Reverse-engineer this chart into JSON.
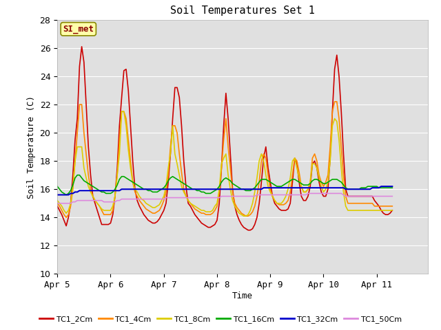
{
  "title": "Soil Temperatures Set 1",
  "xlabel": "Time",
  "ylabel": "Soil Temperature (C)",
  "ylim": [
    10,
    28
  ],
  "yticks": [
    10,
    12,
    14,
    16,
    18,
    20,
    22,
    24,
    26,
    28
  ],
  "annotation_text": "SI_met",
  "plot_bg_color": "#e0e0e0",
  "fig_bg_color": "#ffffff",
  "series": {
    "TC1_2Cm": {
      "color": "#cc0000",
      "lw": 1.2
    },
    "TC1_4Cm": {
      "color": "#ff8800",
      "lw": 1.2
    },
    "TC1_8Cm": {
      "color": "#ddcc00",
      "lw": 1.2
    },
    "TC1_16Cm": {
      "color": "#00aa00",
      "lw": 1.2
    },
    "TC1_32Cm": {
      "color": "#0000cc",
      "lw": 1.5
    },
    "TC1_50Cm": {
      "color": "#dd88dd",
      "lw": 1.2
    }
  },
  "x_day_labels": [
    "Apr 5",
    "Apr 6",
    "Apr 7",
    "Apr 8",
    "Apr 9",
    "Apr 10",
    "Apr 11"
  ],
  "x_day_positions": [
    0,
    24,
    48,
    72,
    96,
    120,
    144
  ],
  "TC1_2Cm": [
    14.8,
    14.5,
    14.2,
    13.8,
    13.4,
    14.0,
    15.0,
    17.0,
    19.5,
    21.0,
    24.7,
    26.1,
    25.0,
    22.0,
    19.0,
    17.0,
    15.5,
    15.0,
    14.5,
    14.0,
    13.5,
    13.5,
    13.5,
    13.5,
    13.6,
    14.2,
    15.5,
    17.5,
    20.5,
    22.5,
    24.4,
    24.5,
    23.0,
    20.5,
    18.0,
    16.0,
    15.2,
    14.8,
    14.5,
    14.2,
    14.0,
    13.8,
    13.7,
    13.6,
    13.6,
    13.7,
    13.9,
    14.2,
    14.5,
    15.0,
    16.5,
    18.5,
    21.0,
    23.2,
    23.2,
    22.5,
    20.5,
    18.0,
    16.2,
    15.0,
    14.8,
    14.5,
    14.2,
    14.0,
    13.8,
    13.6,
    13.5,
    13.4,
    13.3,
    13.3,
    13.4,
    13.5,
    13.8,
    15.0,
    17.5,
    20.5,
    22.8,
    21.0,
    18.5,
    16.0,
    14.8,
    14.2,
    13.8,
    13.5,
    13.3,
    13.2,
    13.1,
    13.1,
    13.2,
    13.5,
    14.0,
    15.0,
    16.5,
    18.2,
    19.0,
    17.5,
    16.5,
    15.5,
    15.0,
    14.8,
    14.6,
    14.5,
    14.5,
    14.5,
    14.6,
    15.0,
    16.5,
    18.2,
    17.8,
    16.5,
    15.5,
    15.2,
    15.2,
    15.5,
    16.2,
    17.8,
    18.0,
    17.5,
    16.5,
    15.8,
    15.5,
    15.5,
    16.0,
    18.2,
    21.5,
    24.5,
    25.5,
    24.0,
    21.5,
    18.5,
    16.0,
    15.5,
    15.5,
    15.5,
    15.5,
    15.5,
    15.5,
    15.5,
    15.5,
    15.5,
    15.5,
    15.5,
    15.5,
    15.2,
    15.0,
    14.8,
    14.5,
    14.3,
    14.2,
    14.2,
    14.3,
    14.5
  ],
  "TC1_4Cm": [
    15.0,
    14.8,
    14.5,
    14.2,
    14.0,
    14.2,
    14.8,
    16.0,
    18.0,
    20.0,
    22.0,
    22.0,
    20.0,
    18.5,
    17.0,
    16.0,
    15.5,
    15.2,
    15.0,
    14.8,
    14.5,
    14.2,
    14.2,
    14.2,
    14.2,
    14.5,
    15.5,
    17.0,
    19.5,
    21.5,
    21.5,
    21.0,
    19.5,
    18.0,
    16.5,
    15.8,
    15.5,
    15.2,
    15.0,
    14.8,
    14.6,
    14.5,
    14.4,
    14.3,
    14.3,
    14.4,
    14.5,
    14.8,
    15.2,
    15.8,
    17.0,
    19.0,
    20.5,
    20.5,
    20.0,
    18.5,
    17.2,
    16.0,
    15.5,
    15.2,
    15.0,
    14.8,
    14.6,
    14.5,
    14.4,
    14.3,
    14.3,
    14.2,
    14.2,
    14.2,
    14.3,
    14.5,
    14.8,
    15.8,
    17.5,
    19.5,
    21.0,
    19.0,
    17.5,
    15.8,
    15.0,
    14.7,
    14.5,
    14.3,
    14.2,
    14.1,
    14.1,
    14.2,
    14.4,
    14.8,
    15.5,
    16.5,
    18.0,
    18.5,
    18.2,
    17.0,
    16.0,
    15.5,
    15.2,
    15.0,
    14.9,
    14.9,
    14.9,
    15.0,
    15.2,
    15.8,
    17.0,
    18.2,
    18.0,
    17.2,
    16.2,
    15.8,
    15.8,
    16.0,
    16.5,
    18.2,
    18.5,
    18.0,
    17.0,
    16.5,
    16.2,
    16.5,
    17.0,
    19.0,
    21.5,
    22.2,
    22.2,
    21.0,
    19.0,
    17.0,
    15.5,
    15.0,
    15.0,
    15.0,
    15.0,
    15.0,
    15.0,
    15.0,
    15.0,
    15.0,
    15.0,
    15.0,
    15.0,
    14.8,
    14.8,
    14.8,
    14.8,
    14.8,
    14.8,
    14.8,
    14.8,
    14.8
  ],
  "TC1_8Cm": [
    15.2,
    15.0,
    14.8,
    14.5,
    14.3,
    14.5,
    15.0,
    16.2,
    18.0,
    19.0,
    19.0,
    19.0,
    17.5,
    16.8,
    16.2,
    15.8,
    15.5,
    15.2,
    15.0,
    14.8,
    14.6,
    14.5,
    14.5,
    14.5,
    14.5,
    14.8,
    15.5,
    17.0,
    18.5,
    21.5,
    21.5,
    20.5,
    18.8,
    17.5,
    16.5,
    16.0,
    15.8,
    15.5,
    15.3,
    15.2,
    15.0,
    14.9,
    14.8,
    14.7,
    14.7,
    14.8,
    14.9,
    15.2,
    15.5,
    16.2,
    17.5,
    18.5,
    20.5,
    18.5,
    17.8,
    17.0,
    16.2,
    15.8,
    15.5,
    15.2,
    15.0,
    14.9,
    14.8,
    14.7,
    14.6,
    14.5,
    14.5,
    14.4,
    14.4,
    14.4,
    14.5,
    14.8,
    15.0,
    16.0,
    17.8,
    18.2,
    18.5,
    17.0,
    16.0,
    15.2,
    14.8,
    14.5,
    14.3,
    14.2,
    14.1,
    14.1,
    14.2,
    14.5,
    15.0,
    15.8,
    16.8,
    18.0,
    18.5,
    18.0,
    17.0,
    16.2,
    15.8,
    15.5,
    15.2,
    15.0,
    15.0,
    15.0,
    15.2,
    15.5,
    16.0,
    16.8,
    18.0,
    18.2,
    17.5,
    16.8,
    16.2,
    15.8,
    15.8,
    16.0,
    16.5,
    17.8,
    17.8,
    17.5,
    16.8,
    16.2,
    15.8,
    16.0,
    16.5,
    18.0,
    20.5,
    21.0,
    20.8,
    19.5,
    17.5,
    15.8,
    14.8,
    14.5,
    14.5,
    14.5,
    14.5,
    14.5,
    14.5,
    14.5,
    14.5,
    14.5,
    14.5,
    14.5,
    14.5,
    14.5,
    14.5,
    14.5,
    14.5,
    14.5,
    14.5,
    14.5,
    14.5,
    14.5
  ],
  "TC1_16Cm": [
    16.2,
    16.0,
    15.8,
    15.7,
    15.6,
    15.7,
    15.9,
    16.3,
    16.8,
    17.0,
    17.0,
    16.8,
    16.6,
    16.5,
    16.4,
    16.3,
    16.2,
    16.1,
    16.0,
    15.9,
    15.8,
    15.8,
    15.7,
    15.7,
    15.7,
    15.8,
    16.0,
    16.3,
    16.7,
    16.9,
    16.9,
    16.8,
    16.7,
    16.6,
    16.5,
    16.4,
    16.3,
    16.2,
    16.1,
    16.0,
    16.0,
    15.9,
    15.9,
    15.8,
    15.8,
    15.8,
    15.9,
    16.0,
    16.1,
    16.3,
    16.6,
    16.8,
    16.9,
    16.8,
    16.7,
    16.6,
    16.5,
    16.4,
    16.3,
    16.2,
    16.1,
    16.0,
    16.0,
    15.9,
    15.9,
    15.8,
    15.8,
    15.7,
    15.7,
    15.7,
    15.8,
    15.9,
    16.0,
    16.2,
    16.5,
    16.7,
    16.8,
    16.7,
    16.6,
    16.4,
    16.3,
    16.2,
    16.1,
    16.0,
    16.0,
    15.9,
    15.9,
    15.9,
    16.0,
    16.1,
    16.3,
    16.5,
    16.7,
    16.7,
    16.7,
    16.6,
    16.5,
    16.4,
    16.3,
    16.2,
    16.2,
    16.2,
    16.3,
    16.4,
    16.5,
    16.6,
    16.7,
    16.7,
    16.6,
    16.5,
    16.4,
    16.3,
    16.3,
    16.3,
    16.4,
    16.6,
    16.7,
    16.7,
    16.6,
    16.5,
    16.4,
    16.4,
    16.5,
    16.6,
    16.7,
    16.7,
    16.7,
    16.6,
    16.5,
    16.3,
    16.1,
    16.0,
    16.0,
    16.0,
    16.0,
    16.0,
    16.0,
    16.1,
    16.1,
    16.1,
    16.2,
    16.2,
    16.2,
    16.2,
    16.2,
    16.1,
    16.1,
    16.1,
    16.1,
    16.1,
    16.1,
    16.1
  ],
  "TC1_32Cm": [
    15.6,
    15.6,
    15.6,
    15.6,
    15.6,
    15.6,
    15.7,
    15.7,
    15.8,
    15.8,
    15.9,
    15.9,
    15.9,
    15.9,
    15.9,
    15.9,
    15.9,
    15.9,
    15.9,
    15.9,
    15.9,
    15.9,
    15.9,
    15.9,
    15.9,
    15.9,
    15.9,
    15.9,
    15.9,
    16.0,
    16.0,
    16.0,
    16.0,
    16.0,
    16.0,
    16.0,
    16.0,
    16.0,
    16.0,
    16.0,
    16.0,
    16.0,
    16.0,
    16.0,
    16.0,
    16.0,
    16.0,
    16.0,
    16.0,
    16.0,
    16.0,
    16.0,
    16.0,
    16.0,
    16.0,
    16.0,
    16.0,
    16.0,
    16.0,
    16.0,
    16.0,
    16.0,
    16.0,
    16.0,
    16.0,
    16.0,
    16.0,
    16.0,
    16.0,
    16.0,
    16.0,
    16.0,
    16.0,
    16.0,
    16.0,
    16.0,
    16.0,
    16.0,
    16.0,
    16.0,
    16.0,
    16.0,
    16.0,
    16.0,
    16.0,
    16.0,
    16.0,
    16.0,
    16.0,
    16.0,
    16.0,
    16.0,
    16.0,
    16.1,
    16.1,
    16.1,
    16.1,
    16.1,
    16.1,
    16.1,
    16.1,
    16.1,
    16.1,
    16.1,
    16.1,
    16.1,
    16.1,
    16.1,
    16.1,
    16.1,
    16.1,
    16.1,
    16.1,
    16.1,
    16.1,
    16.1,
    16.1,
    16.1,
    16.1,
    16.1,
    16.1,
    16.1,
    16.1,
    16.1,
    16.1,
    16.1,
    16.1,
    16.1,
    16.1,
    16.1,
    16.0,
    16.0,
    16.0,
    16.0,
    16.0,
    16.0,
    16.0,
    16.0,
    16.0,
    16.0,
    16.0,
    16.0,
    16.1,
    16.1,
    16.1,
    16.1,
    16.2,
    16.2,
    16.2,
    16.2,
    16.2,
    16.2
  ],
  "TC1_50Cm": [
    15.0,
    15.0,
    15.0,
    15.0,
    15.0,
    15.0,
    15.0,
    15.1,
    15.1,
    15.2,
    15.2,
    15.2,
    15.2,
    15.2,
    15.2,
    15.2,
    15.2,
    15.2,
    15.2,
    15.2,
    15.2,
    15.1,
    15.1,
    15.1,
    15.1,
    15.1,
    15.1,
    15.2,
    15.2,
    15.3,
    15.3,
    15.3,
    15.3,
    15.3,
    15.3,
    15.3,
    15.3,
    15.3,
    15.3,
    15.3,
    15.3,
    15.3,
    15.3,
    15.3,
    15.3,
    15.3,
    15.3,
    15.3,
    15.3,
    15.4,
    15.4,
    15.4,
    15.4,
    15.4,
    15.4,
    15.4,
    15.4,
    15.4,
    15.4,
    15.4,
    15.4,
    15.4,
    15.4,
    15.4,
    15.4,
    15.4,
    15.4,
    15.4,
    15.4,
    15.4,
    15.4,
    15.4,
    15.4,
    15.4,
    15.5,
    15.5,
    15.5,
    15.5,
    15.5,
    15.5,
    15.5,
    15.5,
    15.5,
    15.5,
    15.5,
    15.5,
    15.5,
    15.5,
    15.5,
    15.5,
    15.6,
    15.6,
    15.6,
    15.6,
    15.6,
    15.6,
    15.6,
    15.6,
    15.6,
    15.6,
    15.6,
    15.6,
    15.6,
    15.6,
    15.6,
    15.6,
    15.6,
    15.6,
    15.6,
    15.6,
    15.6,
    15.6,
    15.6,
    15.7,
    15.7,
    15.7,
    15.7,
    15.7,
    15.7,
    15.7,
    15.7,
    15.7,
    15.7,
    15.7,
    15.7,
    15.7,
    15.7,
    15.7,
    15.7,
    15.6,
    15.5,
    15.5,
    15.5,
    15.5,
    15.5,
    15.5,
    15.5,
    15.5,
    15.5,
    15.5,
    15.5,
    15.5,
    15.5,
    15.5,
    15.5,
    15.5,
    15.5,
    15.5,
    15.5,
    15.5,
    15.5,
    15.5
  ]
}
